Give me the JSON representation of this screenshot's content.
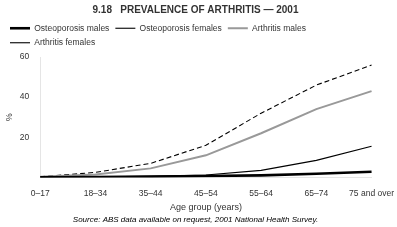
{
  "chart_data": {
    "type": "line",
    "title": "9.18   PREVALENCE OF ARTHRITIS — 2001",
    "x_label": "Age group (years)",
    "y_label": "%",
    "annotations": [
      "Source: ABS data available on request, 2001 National Health Survey."
    ],
    "categories": [
      "0–17",
      "18–34",
      "35–44",
      "45–54",
      "55–64",
      "65–74",
      "75 and over"
    ],
    "series": [
      {
        "name": "Osteoporosis males",
        "color": "#000000",
        "line_style": "solid",
        "values": [
          0.1,
          0.2,
          0.4,
          0.7,
          1.0,
          1.8,
          2.8
        ]
      },
      {
        "name": "Osteoporosis females",
        "color": "#000000",
        "line_style": "solid",
        "values": [
          0.1,
          0.3,
          0.6,
          1.2,
          3.5,
          8.5,
          15.5
        ]
      },
      {
        "name": "Arthritis males",
        "color": "#999999",
        "line_style": "solid",
        "values": [
          0.3,
          1.5,
          4.5,
          11.0,
          22.0,
          34.0,
          43.0
        ]
      },
      {
        "name": "Arthritis females",
        "color": "#000000",
        "line_style": "dashed",
        "values": [
          0.3,
          2.5,
          7.0,
          16.0,
          32.0,
          46.0,
          56.0
        ]
      }
    ],
    "ylim": [
      0,
      60
    ],
    "yticks": [
      20,
      40,
      60
    ],
    "grid": false,
    "legend": "upper left"
  }
}
